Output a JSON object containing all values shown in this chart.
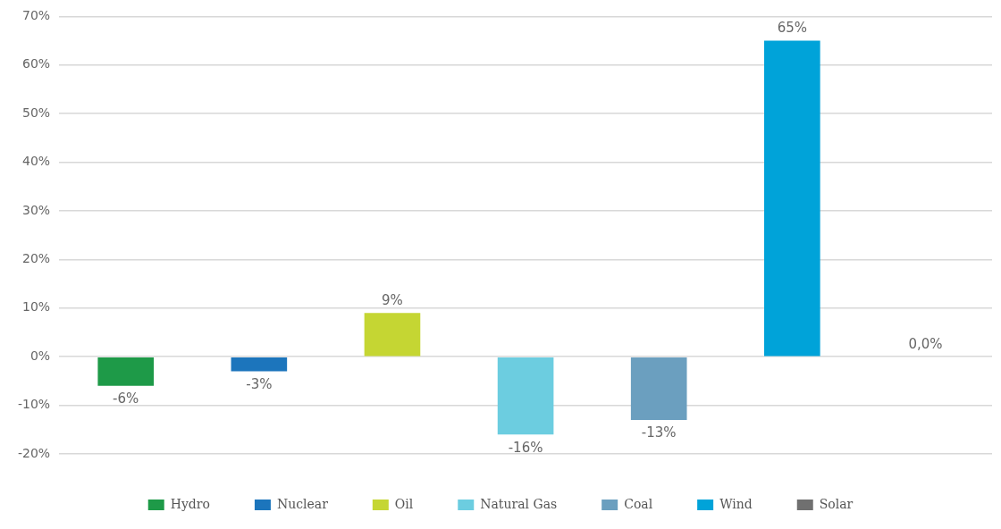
{
  "chart_data": {
    "type": "bar",
    "categories": [
      null,
      null,
      null,
      null,
      null,
      null,
      null
    ],
    "series": [
      {
        "name": "Hydro",
        "color": "#1e9a48",
        "values": [
          -6,
          null,
          null,
          null,
          null,
          null,
          null
        ],
        "value_labels": [
          "-6%",
          null,
          null,
          null,
          null,
          null,
          null
        ]
      },
      {
        "name": "Nuclear",
        "color": "#1c75bc",
        "values": [
          null,
          -3,
          null,
          null,
          null,
          null,
          null
        ],
        "value_labels": [
          null,
          "-3%",
          null,
          null,
          null,
          null,
          null
        ]
      },
      {
        "name": "Oil",
        "color": "#c5d633",
        "values": [
          null,
          null,
          9,
          null,
          null,
          null,
          null
        ],
        "value_labels": [
          null,
          null,
          "9%",
          null,
          null,
          null,
          null
        ]
      },
      {
        "name": "Natural Gas",
        "color": "#6ccde0",
        "values": [
          null,
          null,
          null,
          -16,
          null,
          null,
          null
        ],
        "value_labels": [
          null,
          null,
          null,
          "-16%",
          null,
          null,
          null
        ]
      },
      {
        "name": "Coal",
        "color": "#6b9fbf",
        "values": [
          null,
          null,
          null,
          null,
          -13,
          null,
          null
        ],
        "value_labels": [
          null,
          null,
          null,
          null,
          "-13%",
          null,
          null
        ]
      },
      {
        "name": "Wind",
        "color": "#00a3d9",
        "values": [
          null,
          null,
          null,
          null,
          null,
          65,
          null
        ],
        "value_labels": [
          null,
          null,
          null,
          null,
          null,
          "65%",
          null
        ]
      },
      {
        "name": "Solar",
        "color": "#707070",
        "values": [
          null,
          null,
          null,
          null,
          null,
          null,
          0
        ],
        "value_labels": [
          null,
          null,
          null,
          null,
          null,
          null,
          "0,0%"
        ]
      }
    ],
    "ylim": [
      -20,
      70
    ],
    "yticks": [
      {
        "value": -20,
        "label": "-20%"
      },
      {
        "value": -10,
        "label": "-10%"
      },
      {
        "value": 0,
        "label": "0%"
      },
      {
        "value": 10,
        "label": "10%"
      },
      {
        "value": 20,
        "label": "20%"
      },
      {
        "value": 30,
        "label": "30%"
      },
      {
        "value": 40,
        "label": "40%"
      },
      {
        "value": 50,
        "label": "50%"
      },
      {
        "value": 60,
        "label": "60%"
      },
      {
        "value": 70,
        "label": "70%"
      }
    ],
    "grid": "y",
    "legend": "bottom",
    "tick_labels": "y"
  }
}
